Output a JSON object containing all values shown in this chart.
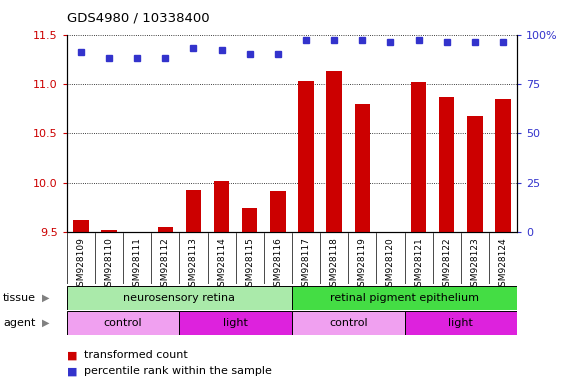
{
  "title": "GDS4980 / 10338400",
  "samples": [
    "GSM928109",
    "GSM928110",
    "GSM928111",
    "GSM928112",
    "GSM928113",
    "GSM928114",
    "GSM928115",
    "GSM928116",
    "GSM928117",
    "GSM928118",
    "GSM928119",
    "GSM928120",
    "GSM928121",
    "GSM928122",
    "GSM928123",
    "GSM928124"
  ],
  "bar_values": [
    9.62,
    9.52,
    9.5,
    9.55,
    9.93,
    10.02,
    9.75,
    9.92,
    11.03,
    11.13,
    10.8,
    9.5,
    11.02,
    10.87,
    10.68,
    10.85
  ],
  "dot_values": [
    91,
    88,
    88,
    88,
    93,
    92,
    90,
    90,
    97,
    97,
    97,
    96,
    97,
    96,
    96,
    96
  ],
  "ylim_left": [
    9.5,
    11.5
  ],
  "ylim_right": [
    0,
    100
  ],
  "yticks_left": [
    9.5,
    10.0,
    10.5,
    11.0,
    11.5
  ],
  "yticks_right": [
    0,
    25,
    50,
    75,
    100
  ],
  "ytick_labels_right": [
    "0",
    "25",
    "50",
    "75",
    "100%"
  ],
  "bar_color": "#cc0000",
  "dot_color": "#3333cc",
  "xtick_bg": "#c8c8c8",
  "tissue_groups": [
    {
      "label": "neurosensory retina",
      "start": 0,
      "end": 8,
      "color": "#aaeaaa"
    },
    {
      "label": "retinal pigment epithelium",
      "start": 8,
      "end": 16,
      "color": "#44dd44"
    }
  ],
  "agent_groups": [
    {
      "label": "control",
      "start": 0,
      "end": 4,
      "color": "#f0a0f0"
    },
    {
      "label": "light",
      "start": 4,
      "end": 8,
      "color": "#dd22dd"
    },
    {
      "label": "control",
      "start": 8,
      "end": 12,
      "color": "#f0a0f0"
    },
    {
      "label": "light",
      "start": 12,
      "end": 16,
      "color": "#dd22dd"
    }
  ],
  "legend_items": [
    {
      "label": "transformed count",
      "color": "#cc0000"
    },
    {
      "label": "percentile rank within the sample",
      "color": "#3333cc"
    }
  ]
}
